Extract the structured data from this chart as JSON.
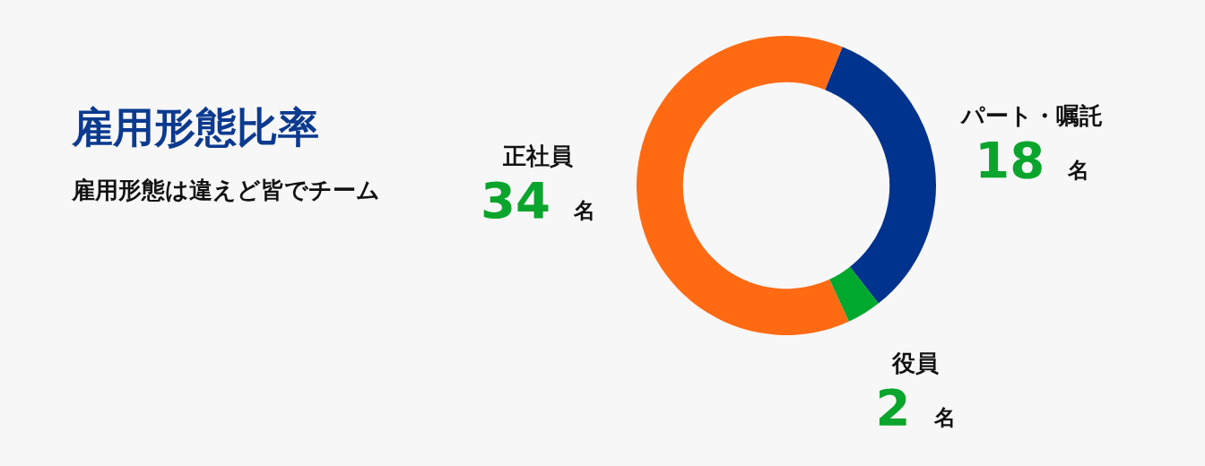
{
  "chart_data": {
    "type": "donut",
    "title": "雇用形態比率",
    "subtitle": "雇用形態は違えど皆でチーム",
    "categories": [
      "パート・嘱託",
      "役員",
      "正社員"
    ],
    "values": [
      18,
      2,
      34
    ],
    "colors": [
      "#00338d",
      "#00a82d",
      "#ff6a13"
    ],
    "value_labels": [
      "18 名",
      "2 名",
      "34 名"
    ],
    "legend": false
  }
}
